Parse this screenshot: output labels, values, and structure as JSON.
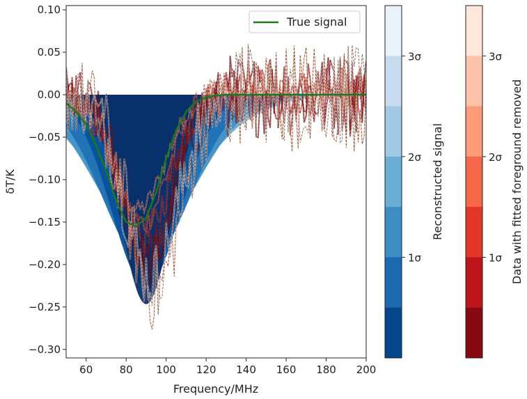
{
  "chart_data": {
    "type": "area",
    "title": "",
    "xlabel": "Frequency/MHz",
    "ylabel": "δT/K",
    "xlim": [
      50,
      200
    ],
    "ylim": [
      -0.31,
      0.105
    ],
    "xticks": [
      60,
      80,
      100,
      120,
      140,
      160,
      180,
      200
    ],
    "xtick_labels": [
      "60",
      "80",
      "100",
      "120",
      "140",
      "160",
      "180",
      "200"
    ],
    "yticks": [
      0.1,
      0.05,
      0.0,
      -0.05,
      -0.1,
      -0.15,
      -0.2,
      -0.25,
      -0.3
    ],
    "ytick_labels": [
      "0.10",
      "0.05",
      "0.00",
      "−0.05",
      "−0.10",
      "−0.15",
      "−0.20",
      "−0.25",
      "−0.30"
    ],
    "grid": false,
    "legend": {
      "position": "top-right",
      "entries": [
        "True signal"
      ]
    },
    "true_signal": {
      "name": "True signal",
      "color": "#1a7a1a",
      "x": [
        50,
        55,
        60,
        65,
        70,
        75,
        80,
        85,
        90,
        95,
        100,
        105,
        110,
        115,
        120,
        125,
        130,
        135,
        140,
        200
      ],
      "y": [
        -0.01,
        -0.02,
        -0.035,
        -0.06,
        -0.09,
        -0.125,
        -0.15,
        -0.155,
        -0.145,
        -0.115,
        -0.075,
        -0.042,
        -0.02,
        -0.008,
        -0.003,
        -0.001,
        0.0,
        0.0,
        0.0,
        0.0
      ]
    },
    "reconstructed_signal_bands": {
      "center": -0.205,
      "center_freq": 90,
      "sigma_levels": [
        "1σ",
        "2σ",
        "3σ"
      ],
      "band_widths_MHz": [
        11,
        15,
        19,
        22,
        25,
        28
      ],
      "band_depths_K": [
        -0.235,
        -0.215,
        -0.19,
        -0.165,
        -0.13,
        -0.1
      ],
      "colors": [
        "#08306b",
        "#08519c",
        "#2171b5",
        "#4292c6",
        "#6baed6",
        "#9ecae1",
        "#c6dbef",
        "#deebf7"
      ]
    },
    "colorbars": [
      {
        "label": "Reconstructed signal",
        "tick_labels": [
          "3σ",
          "2σ",
          "1σ"
        ],
        "colors": [
          "#eaf2fb",
          "#c7dcef",
          "#a1c9e3",
          "#6aadd5",
          "#3e8ec4",
          "#1d6ab0",
          "#08468b"
        ]
      },
      {
        "label": "Data with fitted foreground removed",
        "tick_labels": [
          "3σ",
          "2σ",
          "1σ"
        ],
        "colors": [
          "#fde6dc",
          "#fcc2aa",
          "#fb9b7a",
          "#f5694a",
          "#e23628",
          "#be151a",
          "#860811"
        ]
      }
    ]
  }
}
